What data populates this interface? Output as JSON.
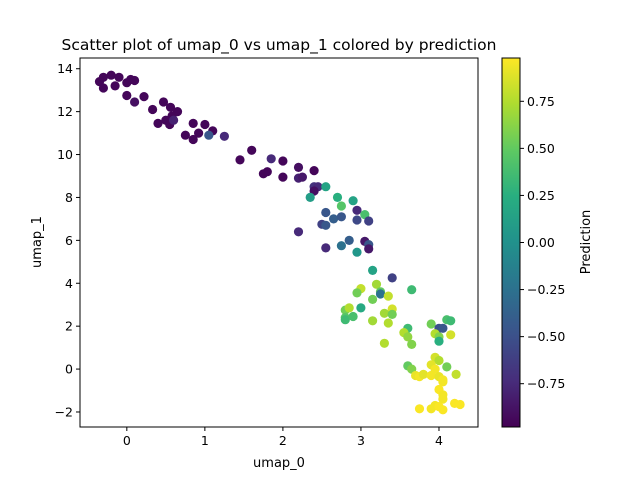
{
  "chart_data": {
    "type": "scatter",
    "title": "Scatter plot of umap_0 vs umap_1 colored by prediction",
    "xlabel": "umap_0",
    "ylabel": "umap_1",
    "xlim": [
      -0.6,
      4.5
    ],
    "ylim": [
      -2.7,
      14.5
    ],
    "xticks": [
      0,
      1,
      2,
      3,
      4
    ],
    "yticks": [
      -2,
      0,
      2,
      4,
      6,
      8,
      10,
      12,
      14
    ],
    "grid": false,
    "colorbar": {
      "label": "Prediction",
      "colormap": "viridis",
      "range": [
        -0.98,
        0.98
      ],
      "ticks": [
        -0.75,
        -0.5,
        -0.25,
        0.0,
        0.25,
        0.5,
        0.75
      ],
      "tick_labels": [
        "−0.75",
        "−0.50",
        "−0.25",
        "0.00",
        "0.25",
        "0.50",
        "0.75"
      ]
    },
    "points": [
      {
        "x": -0.35,
        "y": 13.4,
        "c": -0.95
      },
      {
        "x": -0.3,
        "y": 13.6,
        "c": -0.95
      },
      {
        "x": -0.2,
        "y": 13.7,
        "c": -0.95
      },
      {
        "x": -0.1,
        "y": 13.6,
        "c": -0.95
      },
      {
        "x": -0.3,
        "y": 13.1,
        "c": -0.95
      },
      {
        "x": -0.15,
        "y": 13.2,
        "c": -0.95
      },
      {
        "x": 0.0,
        "y": 13.35,
        "c": -0.95
      },
      {
        "x": 0.05,
        "y": 13.5,
        "c": -0.95
      },
      {
        "x": 0.1,
        "y": 13.45,
        "c": -0.95
      },
      {
        "x": 0.0,
        "y": 12.75,
        "c": -0.95
      },
      {
        "x": 0.1,
        "y": 12.45,
        "c": -0.9
      },
      {
        "x": 0.22,
        "y": 12.7,
        "c": -0.95
      },
      {
        "x": 0.33,
        "y": 12.1,
        "c": -0.95
      },
      {
        "x": 0.47,
        "y": 12.45,
        "c": -0.95
      },
      {
        "x": 0.56,
        "y": 12.2,
        "c": -0.95
      },
      {
        "x": 0.65,
        "y": 12.0,
        "c": -0.95
      },
      {
        "x": 0.58,
        "y": 11.8,
        "c": -0.95
      },
      {
        "x": 0.5,
        "y": 11.6,
        "c": -0.95
      },
      {
        "x": 0.4,
        "y": 11.45,
        "c": -0.95
      },
      {
        "x": 0.55,
        "y": 11.4,
        "c": -0.95
      },
      {
        "x": 0.6,
        "y": 11.6,
        "c": -0.8
      },
      {
        "x": 0.85,
        "y": 11.45,
        "c": -0.95
      },
      {
        "x": 1.0,
        "y": 11.4,
        "c": -0.95
      },
      {
        "x": 1.1,
        "y": 11.1,
        "c": -0.95
      },
      {
        "x": 0.75,
        "y": 10.9,
        "c": -0.95
      },
      {
        "x": 0.85,
        "y": 10.7,
        "c": -0.95
      },
      {
        "x": 0.92,
        "y": 11.0,
        "c": -0.95
      },
      {
        "x": 1.05,
        "y": 10.9,
        "c": -0.45
      },
      {
        "x": 1.25,
        "y": 10.85,
        "c": -0.75
      },
      {
        "x": 1.6,
        "y": 10.2,
        "c": -0.95
      },
      {
        "x": 1.45,
        "y": 9.75,
        "c": -0.95
      },
      {
        "x": 1.85,
        "y": 9.8,
        "c": -0.75
      },
      {
        "x": 2.0,
        "y": 9.7,
        "c": -0.95
      },
      {
        "x": 2.2,
        "y": 9.4,
        "c": -0.9
      },
      {
        "x": 2.4,
        "y": 9.25,
        "c": -0.95
      },
      {
        "x": 1.75,
        "y": 9.1,
        "c": -0.95
      },
      {
        "x": 1.8,
        "y": 9.2,
        "c": -0.95
      },
      {
        "x": 2.0,
        "y": 8.95,
        "c": -0.95
      },
      {
        "x": 2.2,
        "y": 8.9,
        "c": -0.8
      },
      {
        "x": 2.25,
        "y": 8.95,
        "c": -0.85
      },
      {
        "x": 2.4,
        "y": 8.5,
        "c": -0.7
      },
      {
        "x": 2.45,
        "y": 8.5,
        "c": -0.75
      },
      {
        "x": 2.4,
        "y": 8.3,
        "c": -0.9
      },
      {
        "x": 2.55,
        "y": 8.5,
        "c": 0.15
      },
      {
        "x": 2.35,
        "y": 8.0,
        "c": 0.1
      },
      {
        "x": 2.7,
        "y": 8.0,
        "c": 0.25
      },
      {
        "x": 2.75,
        "y": 7.6,
        "c": 0.45
      },
      {
        "x": 2.9,
        "y": 7.85,
        "c": 0.15
      },
      {
        "x": 2.95,
        "y": 7.4,
        "c": -0.75
      },
      {
        "x": 3.05,
        "y": 7.2,
        "c": 0.4
      },
      {
        "x": 2.55,
        "y": 7.3,
        "c": -0.45
      },
      {
        "x": 2.65,
        "y": 7.0,
        "c": -0.4
      },
      {
        "x": 2.75,
        "y": 7.1,
        "c": -0.45
      },
      {
        "x": 2.95,
        "y": 6.95,
        "c": -0.55
      },
      {
        "x": 3.1,
        "y": 6.9,
        "c": -0.6
      },
      {
        "x": 2.5,
        "y": 6.75,
        "c": -0.6
      },
      {
        "x": 2.55,
        "y": 6.7,
        "c": -0.45
      },
      {
        "x": 2.2,
        "y": 6.4,
        "c": -0.75
      },
      {
        "x": 2.85,
        "y": 6.0,
        "c": -0.4
      },
      {
        "x": 3.05,
        "y": 5.95,
        "c": -0.85
      },
      {
        "x": 3.1,
        "y": 5.8,
        "c": -0.45
      },
      {
        "x": 2.75,
        "y": 5.75,
        "c": -0.25
      },
      {
        "x": 2.55,
        "y": 5.65,
        "c": -0.75
      },
      {
        "x": 2.95,
        "y": 5.45,
        "c": 0.05
      },
      {
        "x": 3.1,
        "y": 5.6,
        "c": -0.85
      },
      {
        "x": 3.15,
        "y": 4.6,
        "c": 0.15
      },
      {
        "x": 3.4,
        "y": 4.25,
        "c": -0.6
      },
      {
        "x": 3.2,
        "y": 3.95,
        "c": 0.7
      },
      {
        "x": 3.25,
        "y": 3.6,
        "c": 0.5
      },
      {
        "x": 3.0,
        "y": 3.75,
        "c": 0.8
      },
      {
        "x": 2.95,
        "y": 3.55,
        "c": 0.55
      },
      {
        "x": 3.25,
        "y": 3.5,
        "c": -0.25
      },
      {
        "x": 3.65,
        "y": 3.7,
        "c": 0.35
      },
      {
        "x": 3.15,
        "y": 3.25,
        "c": 0.55
      },
      {
        "x": 3.35,
        "y": 3.4,
        "c": 0.8
      },
      {
        "x": 2.8,
        "y": 2.75,
        "c": 0.55
      },
      {
        "x": 2.85,
        "y": 2.85,
        "c": 0.75
      },
      {
        "x": 3.0,
        "y": 2.85,
        "c": 0.2
      },
      {
        "x": 3.4,
        "y": 2.8,
        "c": 0.85
      },
      {
        "x": 3.3,
        "y": 2.6,
        "c": 0.7
      },
      {
        "x": 3.4,
        "y": 2.55,
        "c": 0.55
      },
      {
        "x": 2.8,
        "y": 2.4,
        "c": 0.45
      },
      {
        "x": 2.8,
        "y": 2.3,
        "c": 0.35
      },
      {
        "x": 2.9,
        "y": 2.45,
        "c": 0.4
      },
      {
        "x": 3.15,
        "y": 2.25,
        "c": 0.7
      },
      {
        "x": 3.35,
        "y": 2.15,
        "c": 0.75
      },
      {
        "x": 3.6,
        "y": 1.9,
        "c": 0.35
      },
      {
        "x": 3.55,
        "y": 1.7,
        "c": 0.75
      },
      {
        "x": 3.6,
        "y": 1.5,
        "c": 0.65
      },
      {
        "x": 3.9,
        "y": 2.1,
        "c": 0.55
      },
      {
        "x": 4.1,
        "y": 2.3,
        "c": 0.4
      },
      {
        "x": 4.15,
        "y": 2.25,
        "c": 0.35
      },
      {
        "x": 4.0,
        "y": 1.9,
        "c": -0.5
      },
      {
        "x": 4.05,
        "y": 1.9,
        "c": -0.45
      },
      {
        "x": 3.95,
        "y": 1.65,
        "c": 0.75
      },
      {
        "x": 4.15,
        "y": 1.6,
        "c": 0.85
      },
      {
        "x": 4.0,
        "y": 1.5,
        "c": 0.6
      },
      {
        "x": 4.0,
        "y": 1.3,
        "c": 0.25
      },
      {
        "x": 3.3,
        "y": 1.2,
        "c": 0.75
      },
      {
        "x": 3.65,
        "y": 1.15,
        "c": 0.6
      },
      {
        "x": 3.95,
        "y": 0.55,
        "c": 0.85
      },
      {
        "x": 4.0,
        "y": 0.4,
        "c": 0.75
      },
      {
        "x": 3.6,
        "y": 0.15,
        "c": 0.5
      },
      {
        "x": 3.65,
        "y": 0.0,
        "c": 0.6
      },
      {
        "x": 3.9,
        "y": 0.2,
        "c": 0.9
      },
      {
        "x": 4.1,
        "y": 0.1,
        "c": 0.55
      },
      {
        "x": 3.95,
        "y": 0.0,
        "c": 0.95
      },
      {
        "x": 3.7,
        "y": -0.3,
        "c": 0.92
      },
      {
        "x": 3.75,
        "y": -0.35,
        "c": 0.95
      },
      {
        "x": 3.8,
        "y": -0.25,
        "c": 0.9
      },
      {
        "x": 3.9,
        "y": -0.3,
        "c": 0.95
      },
      {
        "x": 4.0,
        "y": -0.35,
        "c": 0.92
      },
      {
        "x": 4.05,
        "y": -0.5,
        "c": 0.95
      },
      {
        "x": 4.05,
        "y": -0.6,
        "c": 0.95
      },
      {
        "x": 4.22,
        "y": -0.25,
        "c": 0.8
      },
      {
        "x": 4.0,
        "y": -0.95,
        "c": 0.97
      },
      {
        "x": 4.05,
        "y": -1.2,
        "c": 0.95
      },
      {
        "x": 4.05,
        "y": -1.4,
        "c": 0.95
      },
      {
        "x": 3.95,
        "y": -1.7,
        "c": 0.95
      },
      {
        "x": 3.9,
        "y": -1.85,
        "c": 0.95
      },
      {
        "x": 4.0,
        "y": -1.75,
        "c": 0.97
      },
      {
        "x": 4.05,
        "y": -1.9,
        "c": 0.97
      },
      {
        "x": 3.75,
        "y": -1.85,
        "c": 0.97
      },
      {
        "x": 4.2,
        "y": -1.6,
        "c": 0.97
      },
      {
        "x": 4.27,
        "y": -1.65,
        "c": 0.97
      }
    ]
  }
}
